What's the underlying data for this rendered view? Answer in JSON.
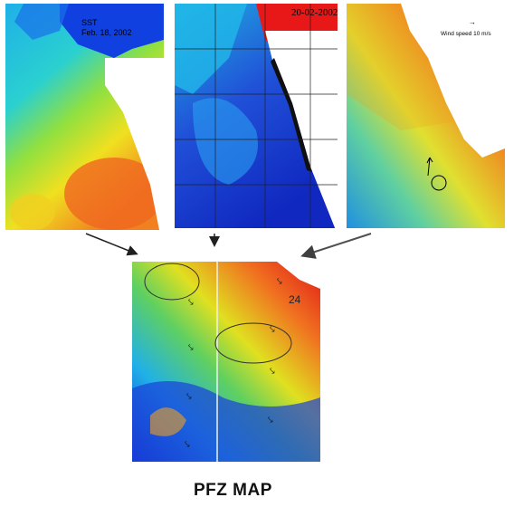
{
  "panels": {
    "sst": {
      "label": "SST",
      "date": "Feb. 18, 2002"
    },
    "chlorophyll": {
      "date": "20-02-2002"
    },
    "wind": {
      "legend": "Wind speed 10 m/s"
    }
  },
  "pfz_map": {
    "title": "PFZ MAP",
    "contour_label": "24"
  },
  "colors": {
    "warm": "#e02818",
    "mid": "#f0e020",
    "cool": "#28c8e0",
    "deep": "#1030d0",
    "land": "#ffffff"
  }
}
